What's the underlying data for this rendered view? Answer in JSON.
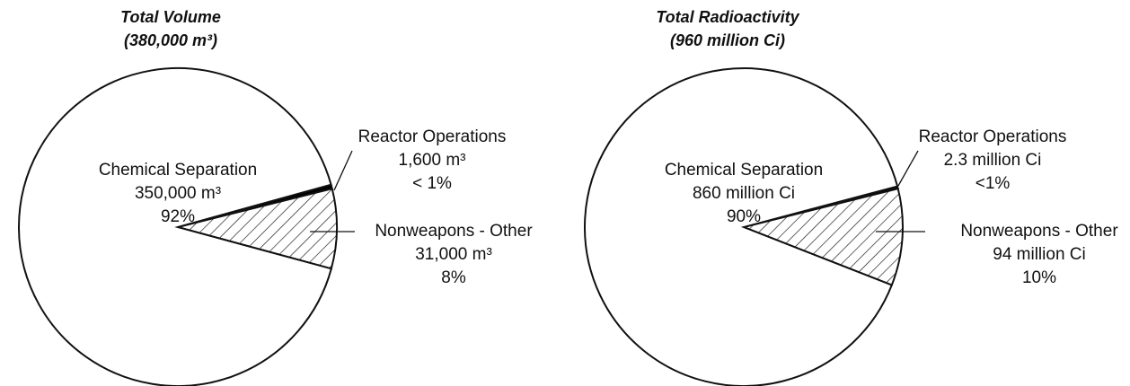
{
  "chart_data": [
    {
      "type": "pie",
      "title": "Total Volume",
      "subtitle": "(380,000 m³)",
      "categories": [
        "Chemical Separation",
        "Reactor Operations",
        "Nonweapons - Other"
      ],
      "values": [
        350000,
        1600,
        31000
      ],
      "value_labels": [
        "350,000 m³",
        "1,600 m³",
        "31,000 m³"
      ],
      "percent_labels": [
        "92%",
        "< 1%",
        "8%"
      ],
      "colors": [
        "#ffffff",
        "#000000",
        "hatch"
      ]
    },
    {
      "type": "pie",
      "title": "Total Radioactivity",
      "subtitle": "(960 million Ci)",
      "categories": [
        "Chemical Separation",
        "Reactor Operations",
        "Nonweapons - Other"
      ],
      "values": [
        860,
        2.3,
        94
      ],
      "value_labels": [
        "860 million Ci",
        "2.3 million Ci",
        "94 million Ci"
      ],
      "percent_labels": [
        "90%",
        "<1%",
        "10%"
      ],
      "colors": [
        "#ffffff",
        "#000000",
        "hatch"
      ]
    }
  ]
}
